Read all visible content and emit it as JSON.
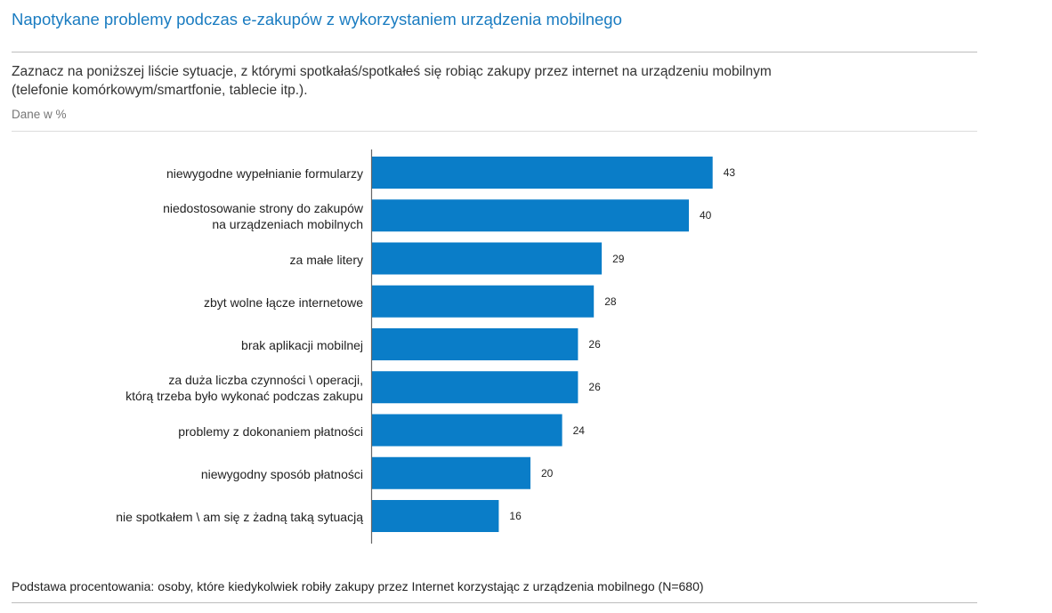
{
  "header": {
    "title": "Napotykane problemy podczas e-zakupów z wykorzystaniem urządzenia mobilnego",
    "question_line1": "Zaznacz na poniższej liście sytuacje, z którymi spotkałaś/spotkałeś się robiąc zakupy przez internet na urządzeniu mobilnym",
    "question_line2": "(telefonie komórkowym/smartfonie, tablecie itp.).",
    "unit_note": "Dane w %"
  },
  "footer": {
    "note": "Podstawa procentowania: osoby, które kiedykolwiek robiły zakupy przez Internet korzystając z urządzenia mobilnego (N=680)"
  },
  "colors": {
    "title": "#1a7cc1",
    "bar": "#0a7dc8"
  },
  "chart_data": {
    "type": "bar",
    "orientation": "horizontal",
    "title": "Napotykane problemy podczas e-zakupów z wykorzystaniem urządzenia mobilnego",
    "xlabel": "",
    "ylabel": "",
    "unit": "%",
    "grid": false,
    "xlim": [
      0,
      50
    ],
    "categories": [
      [
        "niewygodne wypełnianie formularzy"
      ],
      [
        "niedostosowanie strony do zakupów",
        "na urządzeniach mobilnych"
      ],
      [
        "za małe litery"
      ],
      [
        "zbyt wolne łącze internetowe"
      ],
      [
        "brak aplikacji mobilnej"
      ],
      [
        "za duża liczba czynności \\ operacji,",
        "którą trzeba było wykonać podczas zakupu"
      ],
      [
        "problemy z dokonaniem płatności"
      ],
      [
        "niewygodny sposób płatności"
      ],
      [
        "nie spotkałem \\ am się z żadną taką sytuacją"
      ]
    ],
    "values": [
      43,
      40,
      29,
      28,
      26,
      26,
      24,
      20,
      16
    ]
  }
}
